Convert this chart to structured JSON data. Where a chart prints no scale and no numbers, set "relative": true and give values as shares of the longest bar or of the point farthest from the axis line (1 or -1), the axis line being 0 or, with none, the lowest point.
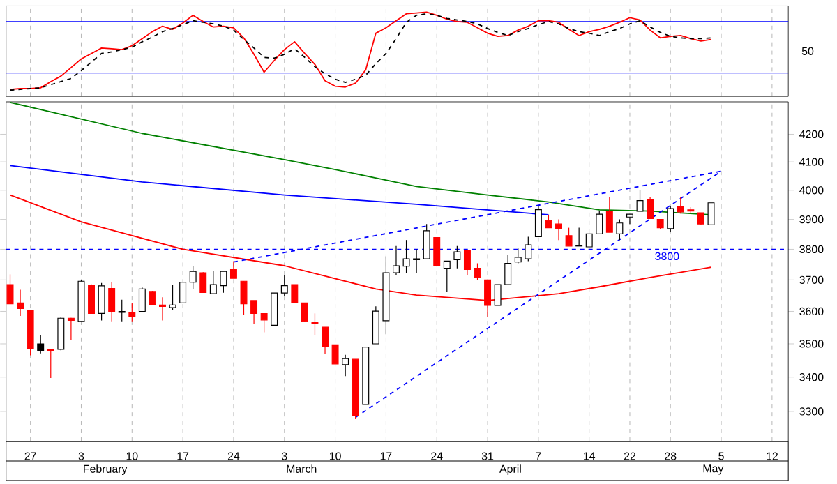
{
  "chart_data": [
    {
      "type": "line",
      "relative": true,
      "tick_labels": false,
      "grid": "x",
      "categories": [
        null,
        null,
        "27",
        null,
        null,
        null,
        null,
        "3",
        null,
        null,
        null,
        null,
        "10",
        null,
        null,
        null,
        null,
        "17",
        null,
        null,
        null,
        null,
        "24",
        null,
        null,
        null,
        null,
        "3",
        null,
        null,
        null,
        null,
        "10",
        null,
        null,
        null,
        null,
        "17",
        null,
        null,
        null,
        null,
        "24",
        null,
        null,
        null,
        null,
        "31",
        null,
        null,
        null,
        null,
        "7",
        null,
        null,
        null,
        null,
        "14",
        null,
        null,
        null,
        "22",
        null,
        null,
        null,
        "28",
        null,
        null,
        null,
        null,
        "5",
        null,
        null,
        null,
        null,
        "12",
        null
      ],
      "annotations": [
        "50"
      ],
      "ref_lines": [
        {
          "axis": "y",
          "value": 0.88,
          "color": "#0000ff"
        },
        {
          "axis": "y",
          "value": 0.22,
          "color": "#0000ff"
        }
      ],
      "series": [
        {
          "color": "#ff0000",
          "line_style": "solid",
          "values": [
            0.01,
            0.02,
            0.02,
            0.03,
            0.11,
            0.18,
            0.29,
            0.4,
            0.47,
            0.54,
            0.53,
            0.52,
            0.57,
            0.66,
            0.75,
            0.82,
            0.78,
            0.86,
            0.96,
            0.88,
            0.81,
            0.82,
            0.8,
            0.67,
            0.46,
            0.23,
            0.38,
            0.52,
            0.62,
            0.47,
            0.33,
            0.12,
            0.05,
            0.04,
            0.09,
            0.26,
            0.73,
            0.8,
            0.89,
            0.98,
            0.99,
            1,
            0.96,
            0.91,
            0.88,
            0.87,
            0.8,
            0.73,
            0.69,
            0.7,
            0.77,
            0.82,
            0.89,
            0.89,
            0.87,
            0.78,
            0.7,
            0.75,
            0.78,
            0.82,
            0.87,
            0.93,
            0.9,
            0.77,
            0.67,
            0.69,
            0.7,
            0.66,
            0.63,
            0.65,
            null,
            null,
            null,
            null,
            null,
            null,
            null
          ]
        },
        {
          "color": "#000000",
          "line_style": "dashed",
          "values": [
            0,
            0.01,
            0.02,
            0.03,
            0.07,
            0.11,
            0.15,
            0.25,
            0.36,
            0.47,
            0.49,
            0.52,
            0.55,
            0.62,
            0.68,
            0.75,
            0.79,
            0.84,
            0.89,
            0.87,
            0.85,
            0.82,
            0.77,
            0.65,
            0.54,
            0.42,
            0.41,
            0.46,
            0.53,
            0.42,
            0.3,
            0.21,
            0.14,
            0.1,
            0.14,
            0.19,
            0.34,
            0.47,
            0.66,
            0.87,
            0.96,
            0.98,
            0.96,
            0.92,
            0.9,
            0.88,
            0.85,
            0.79,
            0.74,
            0.7,
            0.75,
            0.79,
            0.84,
            0.88,
            0.85,
            0.79,
            0.75,
            0.73,
            0.7,
            0.75,
            0.79,
            0.85,
            0.89,
            0.81,
            0.74,
            0.69,
            0.67,
            0.66,
            0.66,
            0.67,
            null,
            null,
            null,
            null,
            null,
            null,
            null
          ]
        }
      ]
    },
    {
      "type": "candlestick",
      "log": true,
      "grid": "x",
      "ylim": [
        3215,
        4320
      ],
      "yticks": [
        3300,
        3400,
        3500,
        3600,
        3700,
        3800,
        3900,
        4000,
        4100,
        4200
      ],
      "categories": [
        null,
        null,
        "27",
        null,
        null,
        null,
        null,
        "3",
        null,
        null,
        null,
        null,
        "10",
        null,
        null,
        null,
        null,
        "17",
        null,
        null,
        null,
        null,
        "24",
        null,
        null,
        null,
        null,
        "3",
        null,
        null,
        null,
        null,
        "10",
        null,
        null,
        null,
        null,
        "17",
        null,
        null,
        null,
        null,
        "24",
        null,
        null,
        null,
        null,
        "31",
        null,
        null,
        null,
        null,
        "7",
        null,
        null,
        null,
        null,
        "14",
        null,
        null,
        null,
        "22",
        null,
        null,
        null,
        "28",
        null,
        null,
        null,
        null,
        "5",
        null,
        null,
        null,
        null,
        "12",
        null
      ],
      "annotations": [
        "February",
        "March",
        "April",
        "May"
      ],
      "ref_lines": [
        {
          "axis": "y",
          "value": 3800,
          "label": "3800",
          "color": "#0000ff",
          "line_style": "dashed"
        }
      ],
      "ohlc": [
        [
          3685,
          3718,
          3624,
          3624
        ],
        [
          3627,
          3668,
          3586,
          3609
        ],
        [
          3602,
          3602,
          3465,
          3486
        ],
        [
          3480,
          3528,
          3471,
          3500
        ],
        [
          3482,
          3482,
          3397,
          3478
        ],
        [
          3483,
          3583,
          3480,
          3579
        ],
        [
          3579,
          3580,
          3511,
          3572
        ],
        [
          3569,
          3700,
          3569,
          3696
        ],
        [
          3684,
          3686,
          3594,
          3594
        ],
        [
          3594,
          3690,
          3572,
          3681
        ],
        [
          3673,
          3693,
          3569,
          3600
        ],
        [
          3597,
          3637,
          3569,
          3600
        ],
        [
          3597,
          3628,
          3569,
          3583
        ],
        [
          3600,
          3676,
          3600,
          3671
        ],
        [
          3663,
          3665,
          3622,
          3622
        ],
        [
          3620,
          3645,
          3572,
          3616
        ],
        [
          3612,
          3684,
          3605,
          3620
        ],
        [
          3627,
          3693,
          3627,
          3693
        ],
        [
          3693,
          3746,
          3671,
          3728
        ],
        [
          3723,
          3725,
          3660,
          3660
        ],
        [
          3656,
          3728,
          3656,
          3685
        ],
        [
          3682,
          3728,
          3659,
          3728
        ],
        [
          3734,
          3761,
          3705,
          3705
        ],
        [
          3696,
          3696,
          3590,
          3624
        ],
        [
          3634,
          3634,
          3561,
          3594
        ],
        [
          3593,
          3593,
          3535,
          3573
        ],
        [
          3557,
          3658,
          3557,
          3658
        ],
        [
          3658,
          3715,
          3648,
          3682
        ],
        [
          3685,
          3685,
          3627,
          3627
        ],
        [
          3627,
          3627,
          3569,
          3569
        ],
        [
          3565,
          3594,
          3526,
          3561
        ],
        [
          3551,
          3551,
          3469,
          3493
        ],
        [
          3497,
          3497,
          3439,
          3439
        ],
        [
          3437,
          3467,
          3403,
          3455
        ],
        [
          3453,
          3453,
          3278,
          3287
        ],
        [
          3320,
          3490,
          3320,
          3490
        ],
        [
          3500,
          3616,
          3500,
          3601
        ],
        [
          3571,
          3777,
          3529,
          3723
        ],
        [
          3723,
          3811,
          3715,
          3746
        ],
        [
          3745,
          3831,
          3723,
          3769
        ],
        [
          3769,
          3800,
          3723,
          3766
        ],
        [
          3769,
          3885,
          3769,
          3862
        ],
        [
          3839,
          3839,
          3746,
          3746
        ],
        [
          3738,
          3761,
          3661,
          3761
        ],
        [
          3766,
          3811,
          3738,
          3792
        ],
        [
          3795,
          3795,
          3715,
          3734
        ],
        [
          3738,
          3754,
          3700,
          3708
        ],
        [
          3700,
          3700,
          3583,
          3619
        ],
        [
          3619,
          3685,
          3619,
          3685
        ],
        [
          3685,
          3780,
          3685,
          3754
        ],
        [
          3758,
          3803,
          3754,
          3774
        ],
        [
          3769,
          3842,
          3761,
          3815
        ],
        [
          3842,
          3946,
          3842,
          3934
        ],
        [
          3897,
          3915,
          3872,
          3872
        ],
        [
          3885,
          3900,
          3831,
          3869
        ],
        [
          3846,
          3872,
          3811,
          3811
        ],
        [
          3811,
          3872,
          3811,
          3813
        ],
        [
          3808,
          3851,
          3808,
          3851
        ],
        [
          3851,
          3928,
          3851,
          3918
        ],
        [
          3928,
          3977,
          3857,
          3857
        ],
        [
          3851,
          3900,
          3831,
          3888
        ],
        [
          3908,
          3918,
          3885,
          3918
        ],
        [
          3928,
          4000,
          3928,
          3965
        ],
        [
          3968,
          3977,
          3903,
          3903
        ],
        [
          3900,
          3900,
          3869,
          3872
        ],
        [
          3869,
          3945,
          3857,
          3937
        ],
        [
          3945,
          3977,
          3920,
          3926
        ],
        [
          3933,
          3942,
          3920,
          3929
        ],
        [
          3923,
          3923,
          3882,
          3885
        ],
        [
          3882,
          3957,
          3882,
          3957
        ],
        null,
        null,
        null,
        null,
        null,
        null,
        null
      ],
      "colors": [
        "#ff0000",
        "#ff0000",
        "#ff0000",
        "#000000",
        "#ff0000",
        "#ffffff",
        "#ff0000",
        "#ffffff",
        "#ff0000",
        "#ffffff",
        "#ff0000",
        "#ffffff",
        "#ff0000",
        "#ffffff",
        "#ff0000",
        "#ff0000",
        "#ffffff",
        "#ffffff",
        "#ffffff",
        "#ff0000",
        "#ffffff",
        "#ffffff",
        "#ff0000",
        "#ff0000",
        "#ff0000",
        "#ff0000",
        "#ffffff",
        "#ffffff",
        "#ff0000",
        "#ff0000",
        "#ff0000",
        "#ff0000",
        "#ff0000",
        "#ffffff",
        "#ff0000",
        "#ffffff",
        "#ffffff",
        "#ffffff",
        "#ffffff",
        "#ffffff",
        "#000000",
        "#ffffff",
        "#ff0000",
        "#ffffff",
        "#ffffff",
        "#ff0000",
        "#ff0000",
        "#ff0000",
        "#ffffff",
        "#ffffff",
        "#ffffff",
        "#ffffff",
        "#ffffff",
        "#ff0000",
        "#ff0000",
        "#ff0000",
        "#000000",
        "#ffffff",
        "#ffffff",
        "#ff0000",
        "#ffffff",
        "#ffffff",
        "#ffffff",
        "#ff0000",
        "#ff0000",
        "#ffffff",
        "#ff0000",
        "#ff0000",
        "#ff0000",
        "#ffffff",
        null,
        null,
        null,
        null,
        null,
        null,
        null
      ],
      "series": [
        {
          "type": "line",
          "color": "#008000",
          "line_style": "solid",
          "values": [
            4318,
            null,
            null,
            null,
            null,
            null,
            null,
            null,
            null,
            null,
            null,
            null,
            null,
            4203,
            null,
            null,
            null,
            null,
            null,
            null,
            null,
            null,
            null,
            null,
            null,
            null,
            null,
            4108,
            null,
            null,
            null,
            null,
            4073,
            null,
            null,
            null,
            null,
            null,
            null,
            null,
            4013,
            null,
            null,
            null,
            null,
            null,
            null,
            3984,
            null,
            null,
            null,
            null,
            null,
            3960,
            null,
            null,
            null,
            null,
            3933,
            null,
            null,
            null,
            null,
            3929,
            null,
            null,
            null,
            null,
            null,
            3916,
            null,
            null,
            null,
            null,
            null,
            null,
            null
          ]
        },
        {
          "type": "line",
          "color": "#0000ff",
          "line_style": "solid",
          "values": [
            4087,
            null,
            null,
            null,
            null,
            null,
            null,
            null,
            null,
            null,
            null,
            null,
            null,
            4029,
            null,
            null,
            null,
            null,
            null,
            null,
            null,
            null,
            null,
            null,
            null,
            null,
            null,
            3984,
            null,
            null,
            null,
            null,
            null,
            null,
            null,
            null,
            null,
            null,
            null,
            null,
            3952,
            null,
            null,
            null,
            null,
            null,
            null,
            null,
            null,
            null,
            null,
            null,
            null,
            3916,
            null,
            null,
            null,
            null,
            null,
            null,
            null,
            null,
            null,
            null,
            null,
            null,
            null,
            null,
            null,
            null,
            null,
            null,
            null,
            null,
            null,
            null,
            null
          ]
        },
        {
          "type": "line",
          "color": "#ff0000",
          "line_style": "solid",
          "values": [
            3984,
            null,
            null,
            null,
            null,
            null,
            null,
            3892,
            null,
            null,
            null,
            null,
            null,
            null,
            null,
            null,
            null,
            3800,
            null,
            null,
            null,
            null,
            null,
            null,
            null,
            null,
            null,
            3746,
            null,
            null,
            null,
            null,
            null,
            null,
            null,
            null,
            3671,
            null,
            null,
            null,
            3652,
            null,
            null,
            null,
            null,
            null,
            null,
            3634,
            null,
            null,
            null,
            null,
            null,
            null,
            3656,
            null,
            null,
            null,
            3678,
            null,
            null,
            null,
            null,
            3708,
            null,
            null,
            null,
            null,
            null,
            3741,
            null,
            null,
            null,
            null,
            null,
            null,
            null
          ]
        },
        {
          "type": "line",
          "color": "#0000ff",
          "line_style": "dashed",
          "values": [
            null,
            null,
            null,
            null,
            null,
            null,
            null,
            null,
            null,
            null,
            null,
            null,
            null,
            null,
            null,
            null,
            null,
            null,
            null,
            null,
            null,
            null,
            3758,
            null,
            null,
            null,
            null,
            null,
            null,
            null,
            null,
            null,
            null,
            null,
            null,
            null,
            null,
            null,
            null,
            null,
            null,
            null,
            null,
            null,
            null,
            null,
            null,
            null,
            null,
            null,
            null,
            null,
            null,
            null,
            null,
            null,
            null,
            null,
            null,
            null,
            null,
            null,
            null,
            null,
            null,
            null,
            null,
            null,
            null,
            null,
            4067,
            null,
            null,
            null,
            null,
            null,
            null
          ]
        },
        {
          "type": "line",
          "color": "#0000ff",
          "line_style": "dashed",
          "values": [
            null,
            null,
            null,
            null,
            null,
            null,
            null,
            null,
            null,
            null,
            null,
            null,
            null,
            null,
            null,
            null,
            null,
            null,
            null,
            null,
            null,
            null,
            null,
            null,
            null,
            null,
            null,
            null,
            null,
            null,
            null,
            null,
            null,
            null,
            3283,
            null,
            null,
            null,
            null,
            null,
            null,
            null,
            null,
            null,
            null,
            null,
            null,
            null,
            null,
            null,
            null,
            null,
            null,
            null,
            null,
            null,
            null,
            null,
            null,
            null,
            null,
            null,
            null,
            null,
            null,
            null,
            null,
            null,
            null,
            null,
            4067,
            null,
            null,
            null,
            null,
            null,
            null
          ]
        }
      ]
    }
  ]
}
